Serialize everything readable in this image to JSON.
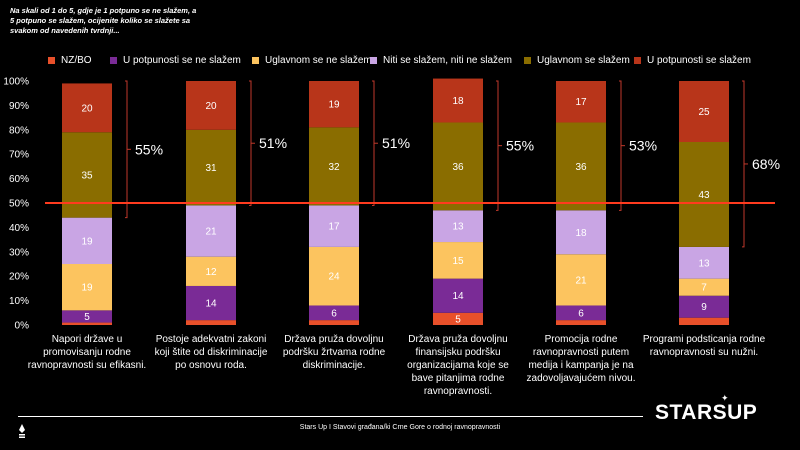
{
  "question": "Na skali od 1 do 5, gdje je 1 potpuno se ne slažem, a 5 potpuno se slažem, ocijenite koliko se slažete sa svakom od navedenih tvrdnji...",
  "chart_data": {
    "type": "bar",
    "stacked": true,
    "ylim": [
      0,
      100
    ],
    "y_ticks": [
      "0%",
      "10%",
      "20%",
      "30%",
      "40%",
      "50%",
      "60%",
      "70%",
      "80%",
      "90%",
      "100%"
    ],
    "reference_line": 50,
    "categories": [
      "Napori države u promovisanju rodne ravnopravnosti su efikasni.",
      "Postoje adekvatni zakoni koji štite od diskriminacije po osnovu roda.",
      "Država pruža dovoljnu podršku žrtvama rodne diskriminacije.",
      "Država pruža dovoljnu finansijsku podršku organizacijama koje se bave pitanjima rodne ravnopravnosti.",
      "Promocija rodne ravnopravnosti putem medija i kampanja je na zadovoljavajućem nivou.",
      "Programi podsticanja rodne ravnopravnosti su nužni."
    ],
    "series": [
      {
        "name": "NZ/BO",
        "color": "#e8502a",
        "values": [
          1,
          2,
          2,
          5,
          2,
          3
        ],
        "labels": [
          "",
          "",
          "",
          "5",
          "",
          ""
        ]
      },
      {
        "name": "U potpunosti se ne slažem",
        "color": "#7a2b96",
        "values": [
          5,
          14,
          6,
          14,
          6,
          9
        ],
        "labels": [
          "5",
          "14",
          "6",
          "14",
          "6",
          "9"
        ]
      },
      {
        "name": "Uglavnom se ne slažem",
        "color": "#fcc45f",
        "values": [
          19,
          12,
          24,
          15,
          21,
          7
        ],
        "labels": [
          "19",
          "12",
          "24",
          "15",
          "21",
          "7"
        ]
      },
      {
        "name": "Niti se slažem, niti ne slažem",
        "color": "#c9a5e4",
        "values": [
          19,
          21,
          17,
          13,
          18,
          13
        ],
        "labels": [
          "19",
          "21",
          "17",
          "13",
          "18",
          "13"
        ]
      },
      {
        "name": "Uglavnom se slažem",
        "color": "#8a6d00",
        "values": [
          35,
          31,
          32,
          36,
          36,
          43
        ],
        "labels": [
          "35",
          "31",
          "32",
          "36",
          "36",
          "43"
        ]
      },
      {
        "name": "U potpunosti se slažem",
        "color": "#b8351a",
        "values": [
          20,
          20,
          19,
          18,
          17,
          25
        ],
        "labels": [
          "20",
          "20",
          "19",
          "18",
          "17",
          "25"
        ]
      }
    ],
    "agree_totals": [
      "55%",
      "51%",
      "51%",
      "55%",
      "53%",
      "68%"
    ]
  },
  "footer": {
    "brand": "STARSUP",
    "text": "Stars Up I Stavovi građana/ki Crne Gore o rodnoj ravnopravnosti"
  },
  "colors": {
    "background": "#000000",
    "reference_line": "#ff3b1f",
    "bracket": "#c0392b"
  }
}
